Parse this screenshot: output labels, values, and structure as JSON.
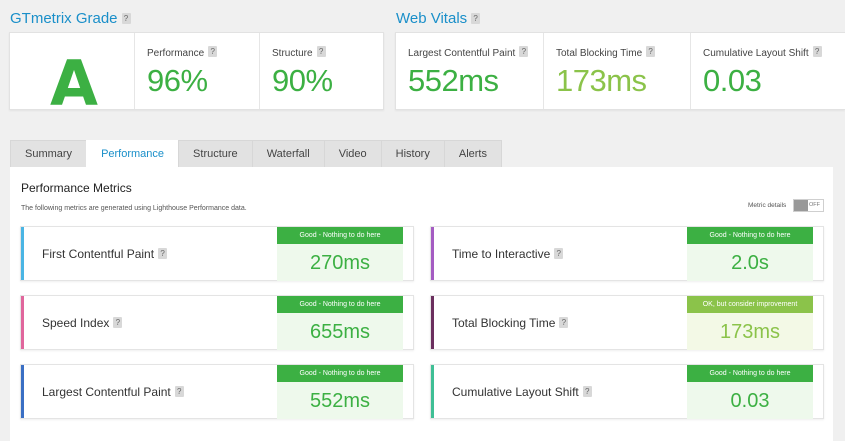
{
  "grade_section": {
    "title": "GTmetrix Grade",
    "grade": "A",
    "performance": {
      "label": "Performance",
      "value": "96%"
    },
    "structure": {
      "label": "Structure",
      "value": "90%"
    }
  },
  "web_vitals": {
    "title": "Web Vitals",
    "items": [
      {
        "label": "Largest Contentful Paint",
        "value": "552ms"
      },
      {
        "label": "Total Blocking Time",
        "value": "173ms"
      },
      {
        "label": "Cumulative Layout Shift",
        "value": "0.03"
      }
    ]
  },
  "help_glyph": "?",
  "tabs": [
    {
      "label": "Summary"
    },
    {
      "label": "Performance"
    },
    {
      "label": "Structure"
    },
    {
      "label": "Waterfall"
    },
    {
      "label": "Video"
    },
    {
      "label": "History"
    },
    {
      "label": "Alerts"
    }
  ],
  "active_tab": "Performance",
  "panel": {
    "title": "Performance Metrics",
    "subtitle": "The following metrics are generated using Lighthouse Performance data.",
    "toggle_label": "Metric details",
    "toggle_state": "OFF"
  },
  "metrics": [
    {
      "name": "First Contentful Paint",
      "badge": "Good - Nothing to do here",
      "value": "270ms",
      "accent": "#4ab5e4",
      "status": "good"
    },
    {
      "name": "Time to Interactive",
      "badge": "Good - Nothing to do here",
      "value": "2.0s",
      "accent": "#a45cc2",
      "status": "good"
    },
    {
      "name": "Speed Index",
      "badge": "Good - Nothing to do here",
      "value": "655ms",
      "accent": "#e0669c",
      "status": "good"
    },
    {
      "name": "Total Blocking Time",
      "badge": "OK, but consider improvement",
      "value": "173ms",
      "accent": "#6b2f5e",
      "status": "ok"
    },
    {
      "name": "Largest Contentful Paint",
      "badge": "Good - Nothing to do here",
      "value": "552ms",
      "accent": "#3a6fc4",
      "status": "good"
    },
    {
      "name": "Cumulative Layout Shift",
      "badge": "Good - Nothing to do here",
      "value": "0.03",
      "accent": "#3fbf95",
      "status": "good"
    }
  ],
  "colors": {
    "good": "#3cb043",
    "ok": "#8bc34a",
    "link": "#1a8fc9"
  }
}
